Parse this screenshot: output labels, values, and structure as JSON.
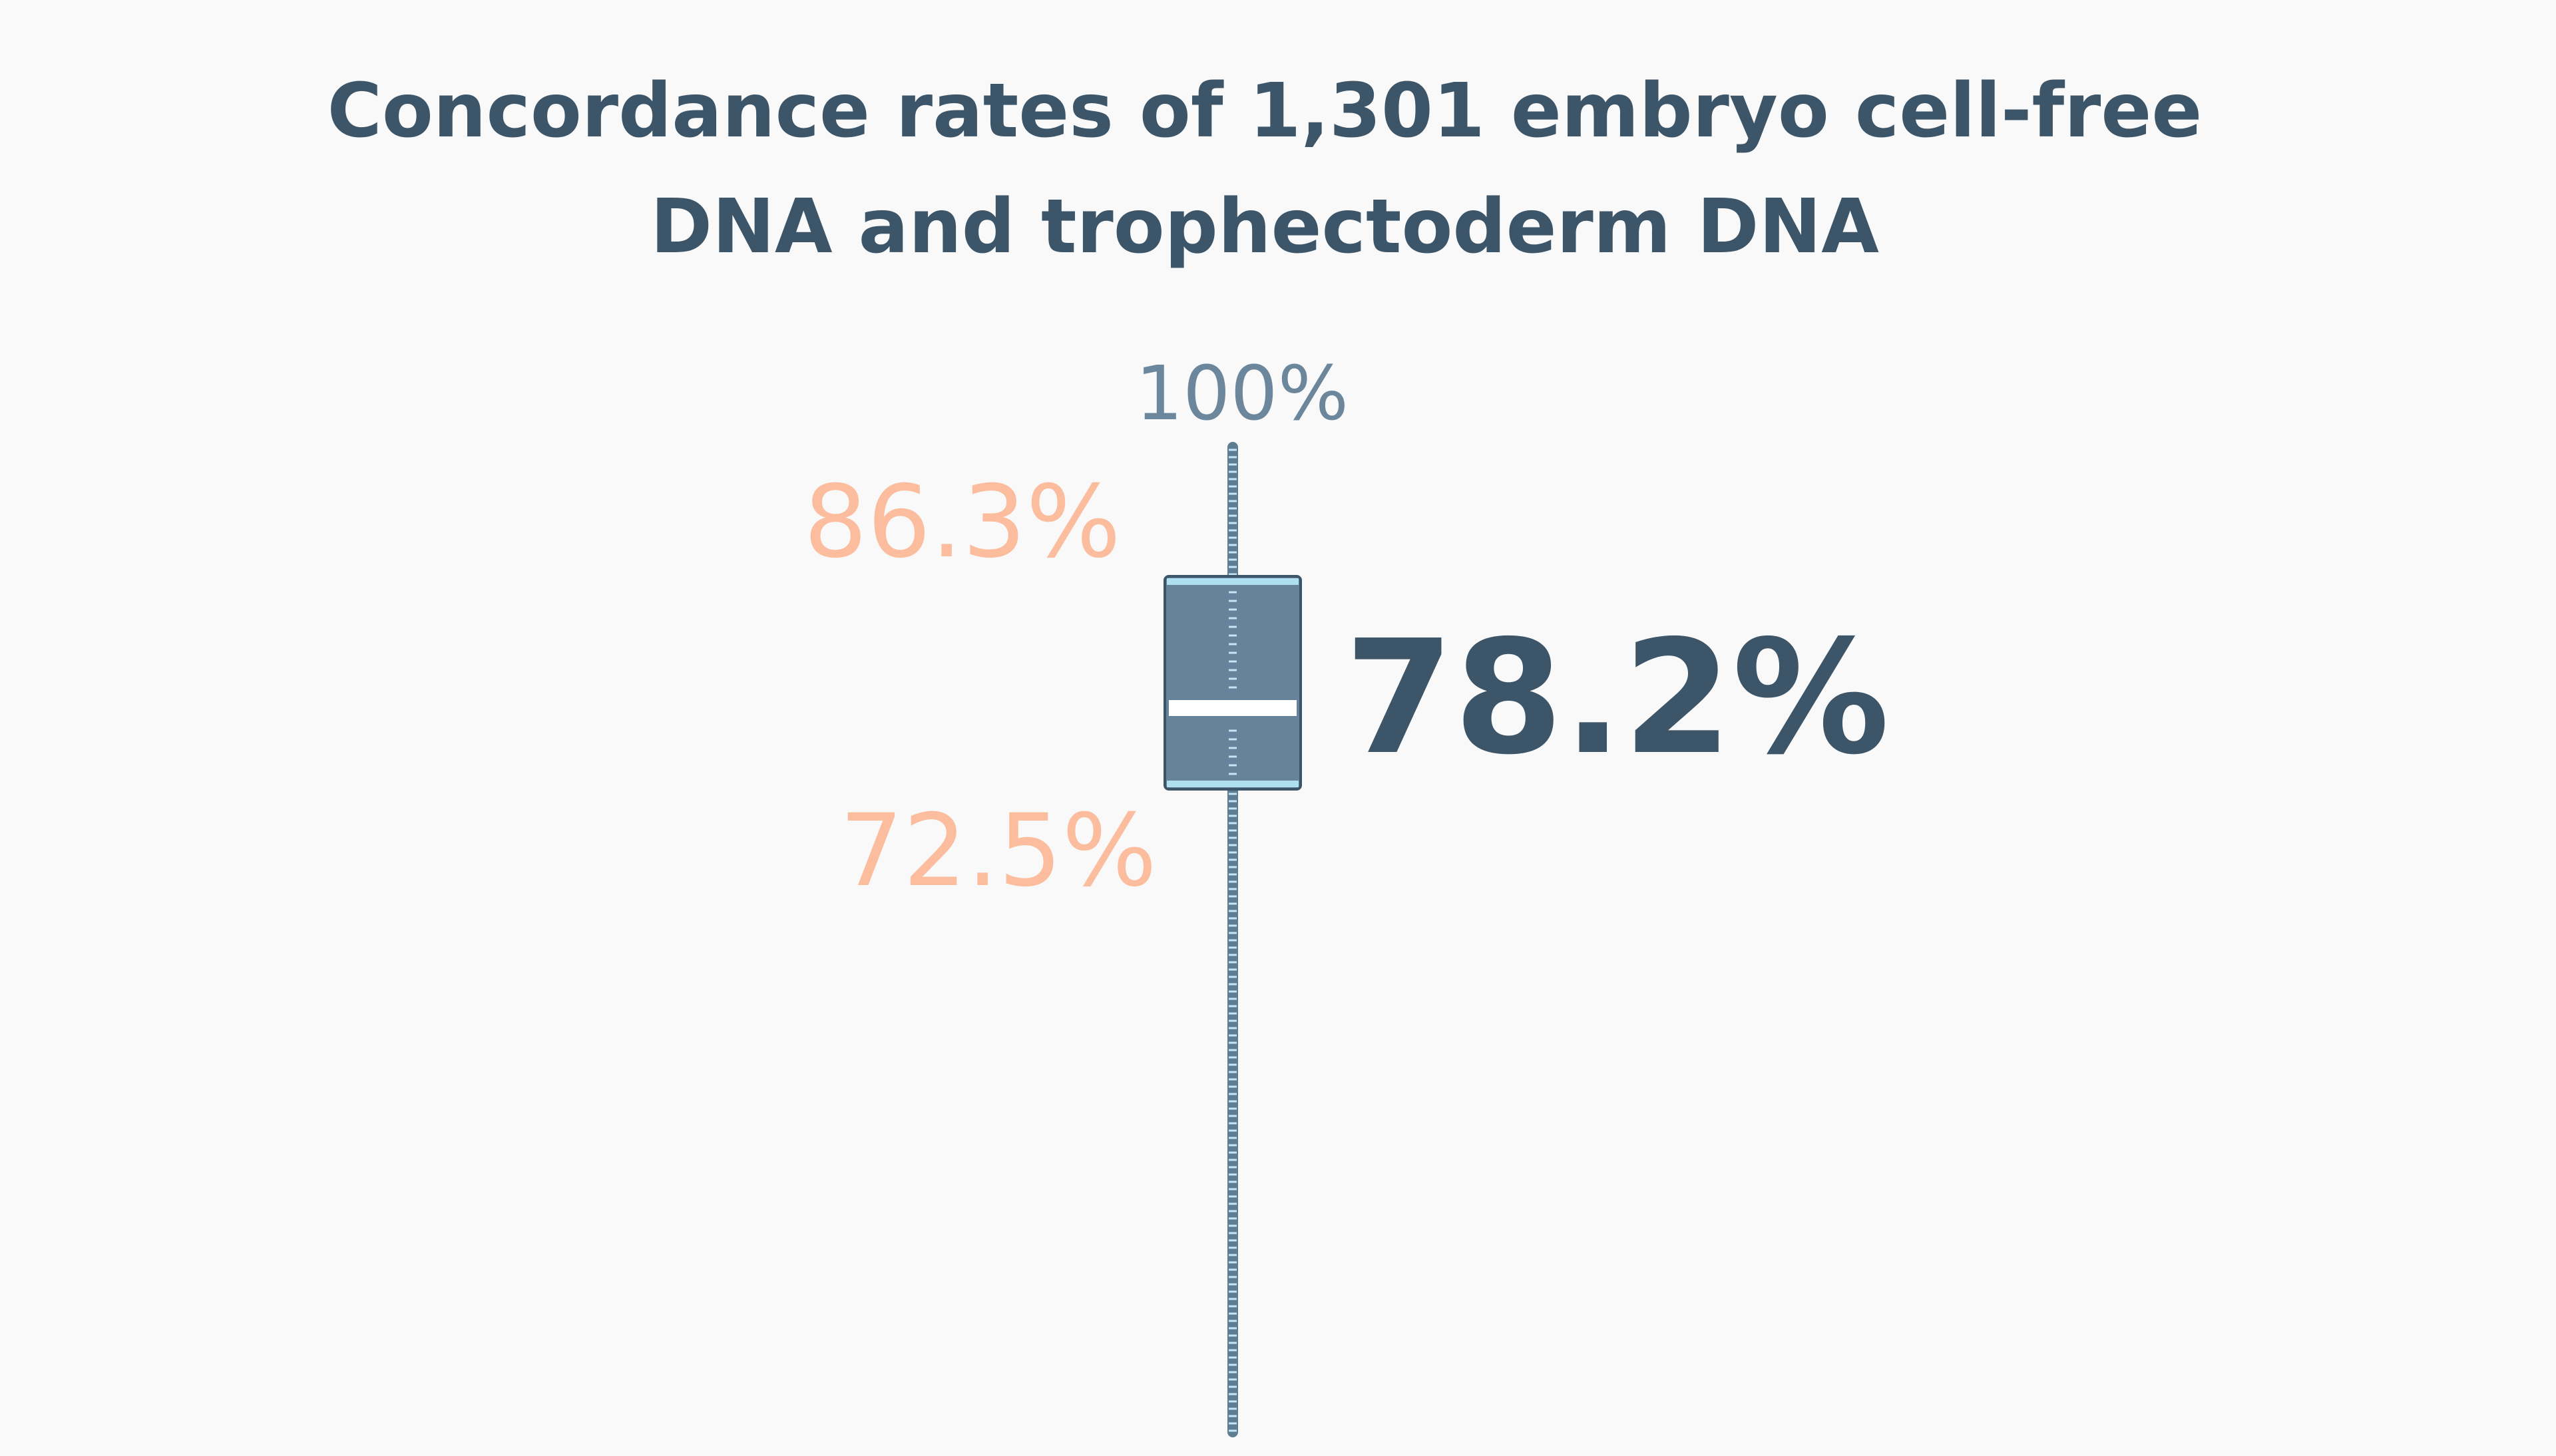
{
  "chart_data": {
    "type": "boxplot",
    "title": "Concordance rates of 1,301 embryo cell-free DNA and trophectoderm DNA",
    "title_lines": [
      "Concordance rates of 1,301 embryo cell-free",
      "DNA and trophectoderm DNA"
    ],
    "series": [
      {
        "max": 100,
        "q3": 86.3,
        "median": 78.2,
        "q1": 72.5,
        "labels": {
          "max": "100%",
          "q3": "86.3%",
          "median": "78.2%",
          "q1": "72.5%"
        }
      }
    ],
    "ylim": [
      0,
      100
    ],
    "grid": false,
    "legend": "none"
  },
  "colors": {
    "background": "#f9f9f9",
    "title": "#3d5569",
    "box_fill": "#66839b",
    "box_stroke": "#3d5569",
    "box_band": "#aee0f2",
    "whisker": "#5f7d92",
    "whisker_tick": "#c2e6f2",
    "max_label": "#6c869c",
    "quartile_label": "#fbbd9d",
    "median_label": "#3d5569",
    "median_line": "#ffffff"
  }
}
